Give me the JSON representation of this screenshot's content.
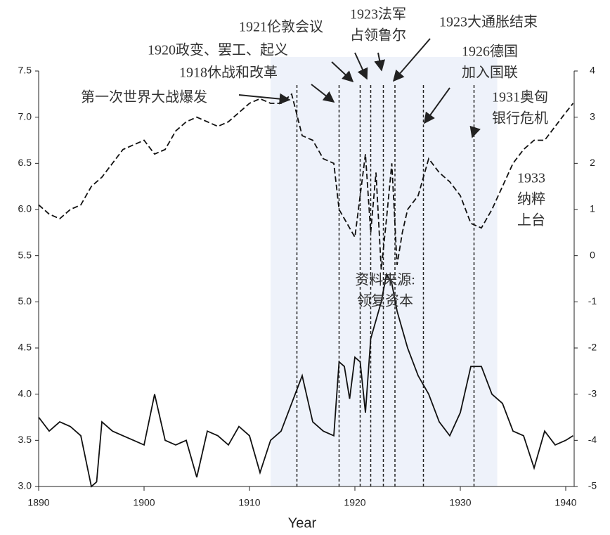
{
  "chart_data": {
    "type": "line",
    "x_label": "Year",
    "xlim": [
      1890,
      1940.8
    ],
    "xticks": [
      1890,
      1900,
      1910,
      1920,
      1930,
      1940
    ],
    "ylim": [
      3.0,
      7.5
    ],
    "yticks": [
      {
        "value": 3.0,
        "label": "3.0"
      },
      3.5,
      {
        "value": 4.0,
        "label": "4.0"
      },
      4.5,
      {
        "value": 5.0,
        "label": "5.0"
      },
      5.5,
      {
        "value": 6.0,
        "label": "6.0"
      },
      6.5,
      {
        "value": 7.0,
        "label": "7.0"
      },
      7.5
    ],
    "y2lim": [
      -5,
      4
    ],
    "y2ticks": [
      -5,
      -4,
      -3,
      -2,
      -1,
      0,
      1,
      2,
      3,
      4
    ],
    "shaded_range": [
      1912,
      1933.5
    ],
    "event_lines": [
      1914.5,
      1918.5,
      1920.5,
      1921.5,
      1922.7,
      1923.8,
      1926.5,
      1931.3
    ],
    "x": [
      1890,
      1891,
      1892,
      1893,
      1894,
      1895,
      1895.5,
      1896,
      1897,
      1898,
      1899,
      1900,
      1901,
      1902,
      1903,
      1904,
      1905,
      1906,
      1907,
      1908,
      1909,
      1910,
      1911,
      1912,
      1913,
      1914,
      1915,
      1916,
      1917,
      1918,
      1918.5,
      1919,
      1919.5,
      1920,
      1920.5,
      1921,
      1921.5,
      1922,
      1922.5,
      1923,
      1923.5,
      1924,
      1924.5,
      1925,
      1926,
      1927,
      1928,
      1929,
      1930,
      1931,
      1932,
      1933,
      1934,
      1935,
      1936,
      1937,
      1938,
      1939,
      1940,
      1940.7
    ],
    "series": [
      {
        "color": "#111",
        "values": [
          3.75,
          3.6,
          3.7,
          3.65,
          3.55,
          3.0,
          3.05,
          3.7,
          3.6,
          3.55,
          3.5,
          3.45,
          4.0,
          3.5,
          3.45,
          3.5,
          3.1,
          3.6,
          3.55,
          3.45,
          3.65,
          3.55,
          3.15,
          3.5,
          3.6,
          3.9,
          4.2,
          3.7,
          3.6,
          3.55,
          4.35,
          4.3,
          3.95,
          4.4,
          4.35,
          3.8,
          4.6,
          4.8,
          5.0,
          5.3,
          5.2,
          4.9,
          4.7,
          4.5,
          4.2,
          4.0,
          3.7,
          3.55,
          3.8,
          4.3,
          4.3,
          4.0,
          3.9,
          3.6,
          3.55,
          3.2,
          3.6,
          3.45,
          3.5,
          3.55
        ]
      },
      {
        "color": "#111",
        "axis": "y2",
        "dashed": true,
        "values": [
          1.1,
          0.9,
          0.8,
          1.0,
          1.1,
          1.5,
          1.6,
          1.7,
          2.0,
          2.3,
          2.4,
          2.5,
          2.2,
          2.3,
          2.7,
          2.9,
          3.0,
          2.9,
          2.8,
          2.9,
          3.1,
          3.3,
          3.4,
          3.3,
          3.3,
          3.5,
          2.6,
          2.5,
          2.1,
          2.0,
          1.0,
          0.8,
          0.6,
          0.4,
          1.3,
          2.2,
          0.5,
          1.8,
          -0.3,
          0.8,
          2.0,
          -0.2,
          0.5,
          1.0,
          1.3,
          2.1,
          1.8,
          1.6,
          1.3,
          0.7,
          0.6,
          1.0,
          1.5,
          2.0,
          2.3,
          2.5,
          2.5,
          2.8,
          3.1,
          3.3
        ]
      }
    ],
    "annotations": [
      [
        "第一次世界大战爆发"
      ],
      [
        "1918休战和改革"
      ],
      [
        "1920政变、罢工、起义"
      ],
      [
        "1921伦敦会议"
      ],
      [
        "1923法军",
        "占领鲁尔"
      ],
      [
        "1923大通胀结束"
      ],
      [
        "1926德国",
        "加入国联"
      ],
      [
        "1931奥匈",
        "银行危机"
      ],
      [
        "1933",
        "纳粹",
        "上台"
      ],
      [
        "资料来源:",
        "领复资本"
      ]
    ]
  }
}
